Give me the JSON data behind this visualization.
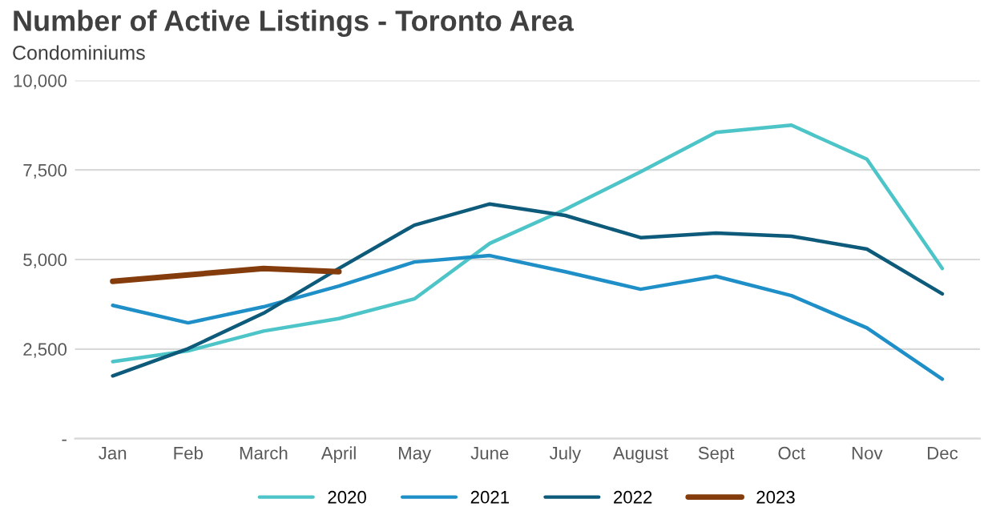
{
  "chart_data": {
    "type": "line",
    "title": "Number of Active Listings - Toronto Area",
    "subtitle": "Condominiums",
    "categories": [
      "Jan",
      "Feb",
      "March",
      "April",
      "May",
      "June",
      "July",
      "August",
      "Sept",
      "Oct",
      "Nov",
      "Dec"
    ],
    "series": [
      {
        "name": "2020",
        "color": "#4dc4c8",
        "values": [
          2150,
          2450,
          3000,
          3350,
          3900,
          5450,
          6400,
          7450,
          8550,
          8750,
          7800,
          4750
        ]
      },
      {
        "name": "2021",
        "color": "#1f8fc8",
        "values": [
          3720,
          3230,
          3680,
          4260,
          4930,
          5110,
          4660,
          4170,
          4530,
          3990,
          3090,
          1660
        ]
      },
      {
        "name": "2022",
        "color": "#0d5a7a",
        "values": [
          1750,
          2510,
          3500,
          4750,
          5960,
          6550,
          6230,
          5610,
          5740,
          5650,
          5290,
          4040
        ]
      },
      {
        "name": "2023",
        "color": "#843c0c",
        "values": [
          4390,
          4570,
          4750,
          4660,
          null,
          null,
          null,
          null,
          null,
          null,
          null,
          null
        ]
      }
    ],
    "ylim": [
      0,
      10000
    ],
    "yticks": [
      {
        "value": 0,
        "label": "-"
      },
      {
        "value": 2500,
        "label": "2,500"
      },
      {
        "value": 5000,
        "label": "5,000"
      },
      {
        "value": 7500,
        "label": "7,500"
      },
      {
        "value": 10000,
        "label": "10,000"
      }
    ],
    "grid": "y",
    "legend": "bottom",
    "marker": "none",
    "line_style": "solid"
  }
}
